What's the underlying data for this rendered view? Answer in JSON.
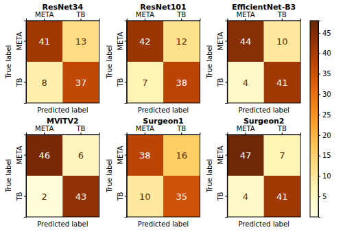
{
  "chart_data": [
    {
      "type": "heatmap",
      "title": "ResNet34",
      "x_categories": [
        "META",
        "TB"
      ],
      "y_categories": [
        "META",
        "TB"
      ],
      "values": [
        [
          41,
          13
        ],
        [
          8,
          37
        ]
      ],
      "xlabel": "Predicted label",
      "ylabel": "True label",
      "data_labels": true
    },
    {
      "type": "heatmap",
      "title": "ResNet101",
      "x_categories": [
        "META",
        "TB"
      ],
      "y_categories": [
        "META",
        "TB"
      ],
      "values": [
        [
          42,
          12
        ],
        [
          7,
          38
        ]
      ],
      "xlabel": "Predicted label",
      "ylabel": "True label",
      "data_labels": true
    },
    {
      "type": "heatmap",
      "title": "EfficientNet-B3",
      "x_categories": [
        "META",
        "TB"
      ],
      "y_categories": [
        "META",
        "TB"
      ],
      "values": [
        [
          44,
          10
        ],
        [
          4,
          41
        ]
      ],
      "xlabel": "Predicted label",
      "ylabel": "True label",
      "data_labels": true
    },
    {
      "type": "heatmap",
      "title": "MViTV2",
      "x_categories": [
        "META",
        "TB"
      ],
      "y_categories": [
        "META",
        "TB"
      ],
      "values": [
        [
          46,
          6
        ],
        [
          2,
          43
        ]
      ],
      "xlabel": "Predicted label",
      "ylabel": "True label",
      "data_labels": true
    },
    {
      "type": "heatmap",
      "title": "Surgeon1",
      "x_categories": [
        "META",
        "TB"
      ],
      "y_categories": [
        "META",
        "TB"
      ],
      "values": [
        [
          38,
          16
        ],
        [
          10,
          35
        ]
      ],
      "xlabel": "Predicted label",
      "ylabel": "True label",
      "data_labels": true
    },
    {
      "type": "heatmap",
      "title": "Surgeon2",
      "x_categories": [
        "META",
        "TB"
      ],
      "y_categories": [
        "META",
        "TB"
      ],
      "values": [
        [
          47,
          7
        ],
        [
          4,
          41
        ]
      ],
      "xlabel": "Predicted label",
      "ylabel": "True label",
      "data_labels": true
    },
    {
      "type": "colorbar",
      "color": "YlOrBr",
      "ylim": [
        0,
        48
      ],
      "yticks": [
        5,
        10,
        15,
        20,
        25,
        30,
        35,
        40,
        45
      ]
    }
  ]
}
